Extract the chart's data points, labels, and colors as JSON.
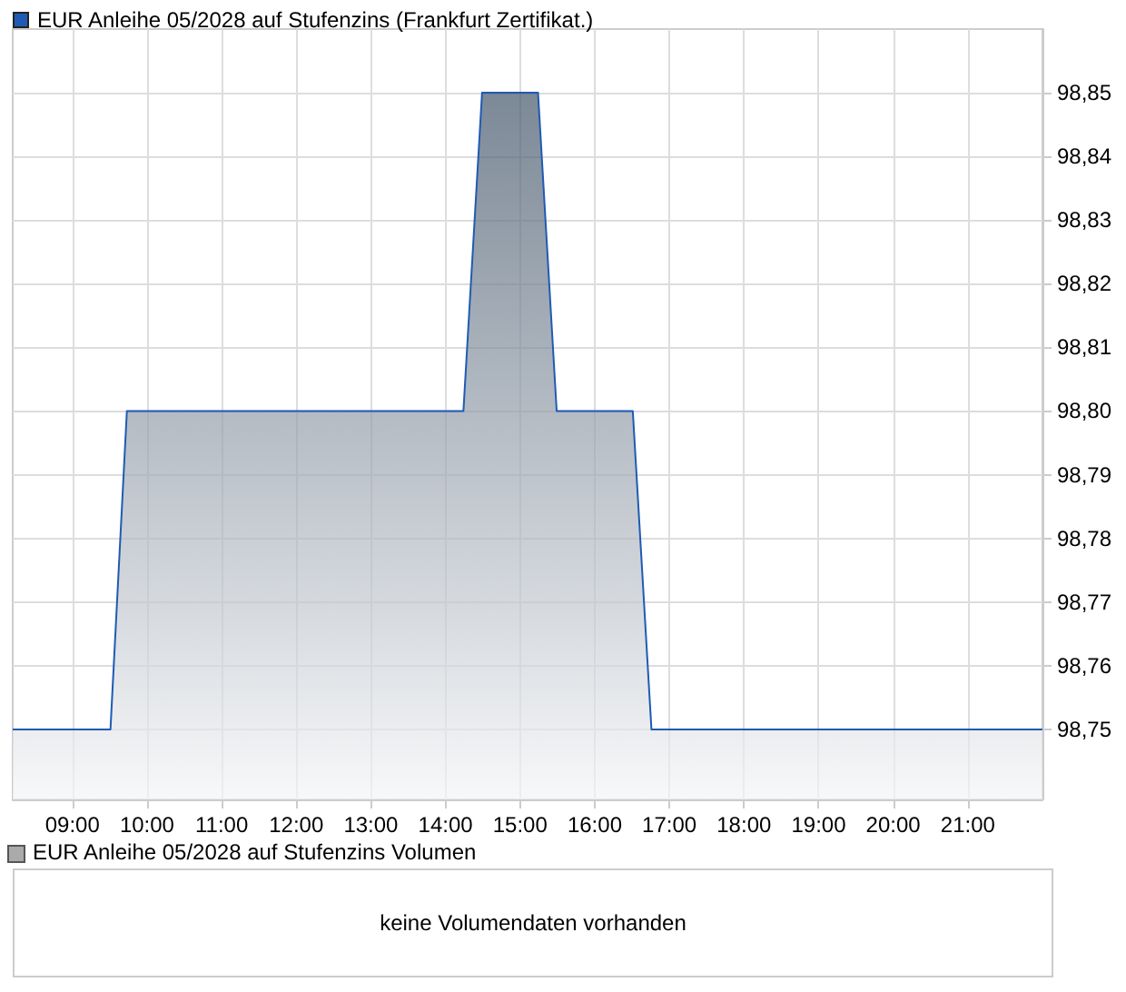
{
  "chart_data": [
    {
      "type": "area",
      "x": [
        8.2,
        9.51,
        9.73,
        14.24,
        14.49,
        15.24,
        15.49,
        16.51,
        16.76,
        22
      ],
      "series": [
        {
          "name": "EUR Anleihe 05/2028 auf Stufenzins (Frankfurt Zertifikat.)",
          "color": "#1f5bb4",
          "values": [
            98.75,
            98.75,
            98.8,
            98.8,
            98.85,
            98.85,
            98.8,
            98.8,
            98.75,
            98.75
          ]
        }
      ],
      "xlim": [
        8.2,
        22
      ],
      "xticks": [
        {
          "value": 9,
          "label": "09:00"
        },
        {
          "value": 10,
          "label": "10:00"
        },
        {
          "value": 11,
          "label": "11:00"
        },
        {
          "value": 12,
          "label": "12:00"
        },
        {
          "value": 13,
          "label": "13:00"
        },
        {
          "value": 14,
          "label": "14:00"
        },
        {
          "value": 15,
          "label": "15:00"
        },
        {
          "value": 16,
          "label": "16:00"
        },
        {
          "value": 17,
          "label": "17:00"
        },
        {
          "value": 18,
          "label": "18:00"
        },
        {
          "value": 19,
          "label": "19:00"
        },
        {
          "value": 20,
          "label": "20:00"
        },
        {
          "value": 21,
          "label": "21:00"
        }
      ],
      "ylim": [
        98.739,
        98.86
      ],
      "yticks": [
        {
          "value": 98.75,
          "label": "98,75"
        },
        {
          "value": 98.76,
          "label": "98,76"
        },
        {
          "value": 98.77,
          "label": "98,77"
        },
        {
          "value": 98.78,
          "label": "98,78"
        },
        {
          "value": 98.79,
          "label": "98,79"
        },
        {
          "value": 98.8,
          "label": "98,80"
        },
        {
          "value": 98.81,
          "label": "98,81"
        },
        {
          "value": 98.82,
          "label": "98,82"
        },
        {
          "value": 98.83,
          "label": "98,83"
        },
        {
          "value": 98.84,
          "label": "98,84"
        },
        {
          "value": 98.85,
          "label": "98,85"
        }
      ],
      "grid": true,
      "legend": "top left"
    },
    {
      "type": "other",
      "title": "EUR Anleihe 05/2028 auf Stufenzins Volumen",
      "annotations": [
        "keine Volumendaten vorhanden"
      ]
    }
  ]
}
